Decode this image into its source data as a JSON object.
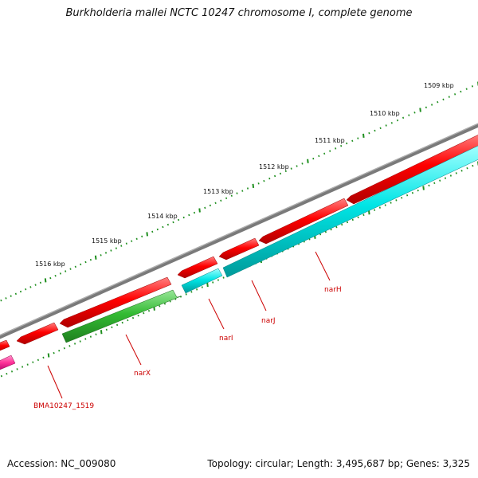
{
  "title": "Burkholderia mallei NCTC 10247 chromosome I, complete genome",
  "footer": {
    "accession": "Accession: NC_009080",
    "summary": "Topology: circular; Length: 3,495,687 bp; Genes: 3,325"
  },
  "ruler": {
    "labels": [
      "1509 kbp",
      "1510 kbp",
      "1511 kbp",
      "1512 kbp",
      "1513 kbp",
      "1514 kbp",
      "1515 kbp",
      "1516 kbp"
    ]
  },
  "genes": [
    {
      "label": "narH",
      "strand": "reverse",
      "color": "#ff0000"
    },
    {
      "label": "narJ",
      "strand": "reverse",
      "color": "#ff0000"
    },
    {
      "label": "narI",
      "strand": "reverse",
      "color": "#ff0000"
    },
    {
      "label": "narX",
      "strand": "forward",
      "color": "#33bb33"
    },
    {
      "label": "BMA10247_1519",
      "strand": "forward",
      "color": "#ff3399"
    }
  ],
  "colors": {
    "backbone": "#888888",
    "cds_red": "#ff0000",
    "cds_cyan": "#00e5e5",
    "cds_green": "#33bb33",
    "cds_pink": "#ff3399",
    "ticks": "#1f8f1f",
    "label": "#cc0000"
  }
}
